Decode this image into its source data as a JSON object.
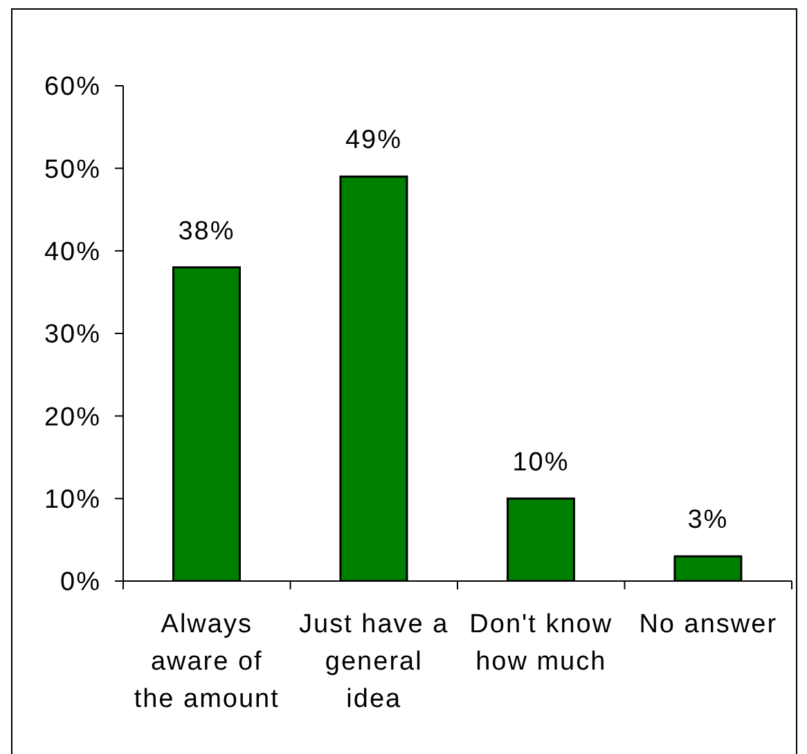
{
  "chart_data": {
    "type": "bar",
    "categories": [
      "Always aware of the amount",
      "Just have a general idea",
      "Don't know how much",
      "No answer"
    ],
    "values": [
      38,
      49,
      10,
      3
    ],
    "value_labels": [
      "38%",
      "49%",
      "10%",
      "3%"
    ],
    "color": "#008000",
    "ylim": [
      0,
      60
    ],
    "yticks": [
      {
        "value": 0,
        "label": "0%"
      },
      {
        "value": 10,
        "label": "10%"
      },
      {
        "value": 20,
        "label": "20%"
      },
      {
        "value": 30,
        "label": "30%"
      },
      {
        "value": 40,
        "label": "40%"
      },
      {
        "value": 50,
        "label": "50%"
      },
      {
        "value": 60,
        "label": "60%"
      }
    ]
  }
}
